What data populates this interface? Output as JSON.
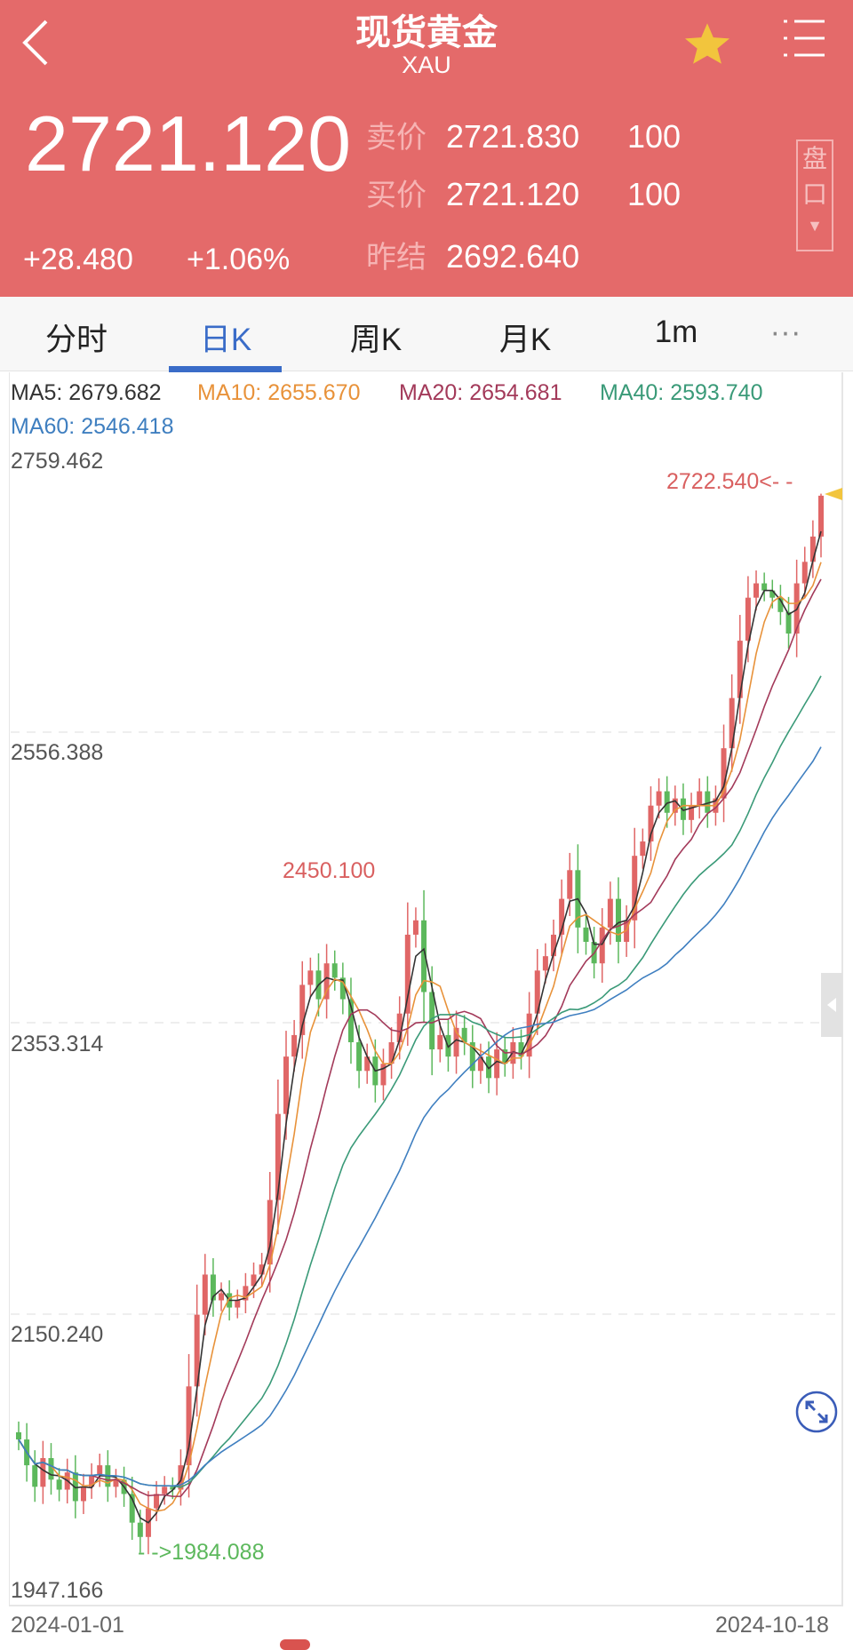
{
  "header": {
    "title": "现货黄金",
    "symbol": "XAU",
    "last_price": "2721.120",
    "ask_label": "卖价",
    "ask_price": "2721.830",
    "ask_qty": "100",
    "bid_label": "买价",
    "bid_price": "2721.120",
    "bid_qty": "100",
    "prev_label": "昨结",
    "prev_settle": "2692.640",
    "change": "+28.480",
    "change_pct": "+1.06%",
    "pankou_label_1": "盘",
    "pankou_label_2": "口",
    "icons": [
      "back-icon",
      "star-icon",
      "menu-icon"
    ]
  },
  "tabs": [
    {
      "label": "分时"
    },
    {
      "label": "日K",
      "active": true
    },
    {
      "label": "周K"
    },
    {
      "label": "月K"
    },
    {
      "label": "1m"
    },
    {
      "label": "···"
    }
  ],
  "ma_legend": {
    "ma5": "MA5: 2679.682",
    "ma10": "MA10: 2655.670",
    "ma20": "MA20: 2654.681",
    "ma40": "MA40: 2593.740",
    "ma60": "MA60: 2546.418"
  },
  "colors": {
    "header": "#e46a6a",
    "up": "#e06666",
    "down": "#5cb85c",
    "ma5": "#333333",
    "ma10": "#e8923a",
    "ma20": "#a33a5a",
    "ma40": "#3a9a78",
    "ma60": "#3f7fc0",
    "accent": "#3a6cc8"
  },
  "chart_data": {
    "type": "candlestick",
    "ylim": [
      1947.166,
      2759.462
    ],
    "y_ticks": [
      "2759.462",
      "2556.388",
      "2353.314",
      "2150.240",
      "1947.166"
    ],
    "x_start": "2024-01-01",
    "x_end": "2024-10-18",
    "max_label": "2722.540<- -",
    "min_label": "- ->1984.088",
    "high_annotation": "2450.100",
    "high": 2722.54,
    "low": 1984.088,
    "close": [
      2063,
      2045,
      2030,
      2050,
      2035,
      2028,
      2040,
      2020,
      2030,
      2038,
      2045,
      2030,
      2035,
      2025,
      2005,
      1995,
      2015,
      2025,
      2030,
      2028,
      2045,
      2100,
      2150,
      2178,
      2160,
      2165,
      2155,
      2160,
      2170,
      2178,
      2185,
      2230,
      2290,
      2330,
      2345,
      2380,
      2390,
      2370,
      2395,
      2385,
      2370,
      2340,
      2320,
      2330,
      2310,
      2325,
      2340,
      2360,
      2415,
      2425,
      2375,
      2335,
      2345,
      2330,
      2350,
      2340,
      2320,
      2330,
      2315,
      2335,
      2325,
      2340,
      2330,
      2360,
      2390,
      2400,
      2415,
      2440,
      2460,
      2420,
      2410,
      2395,
      2420,
      2440,
      2410,
      2425,
      2470,
      2480,
      2505,
      2515,
      2500,
      2510,
      2495,
      2505,
      2515,
      2500,
      2510,
      2545,
      2580,
      2620,
      2650,
      2660,
      2655,
      2650,
      2640,
      2625,
      2660,
      2675,
      2692.64,
      2721.12
    ]
  }
}
